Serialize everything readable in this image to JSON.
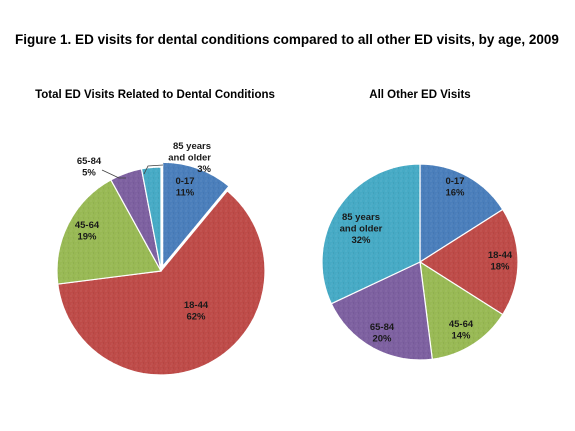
{
  "figure_title": "Figure 1. ED visits for dental conditions compared to all other ED visits, by age, 2009",
  "chart_data": [
    {
      "type": "pie",
      "title": "Total ED Visits Related to Dental Conditions",
      "slices": [
        {
          "name": "0-17",
          "value": 11,
          "label": "11%",
          "color": "#4a7ebb"
        },
        {
          "name": "18-44",
          "value": 62,
          "label": "62%",
          "color": "#be4b48"
        },
        {
          "name": "45-64",
          "value": 19,
          "label": "19%",
          "color": "#98b954"
        },
        {
          "name": "65-84",
          "value": 5,
          "label": "5%",
          "color": "#7d60a0"
        },
        {
          "name": "85 years and older",
          "value": 3,
          "label": "3%",
          "color": "#46aac5"
        }
      ]
    },
    {
      "type": "pie",
      "title": "All Other ED Visits",
      "slices": [
        {
          "name": "0-17",
          "value": 16,
          "label": "16%",
          "color": "#4a7ebb"
        },
        {
          "name": "18-44",
          "value": 18,
          "label": "18%",
          "color": "#be4b48"
        },
        {
          "name": "45-64",
          "value": 14,
          "label": "14%",
          "color": "#98b954"
        },
        {
          "name": "65-84",
          "value": 20,
          "label": "20%",
          "color": "#7d60a0"
        },
        {
          "name": "85 years and older",
          "value": 32,
          "label": "32%",
          "color": "#46aac5"
        }
      ]
    }
  ]
}
